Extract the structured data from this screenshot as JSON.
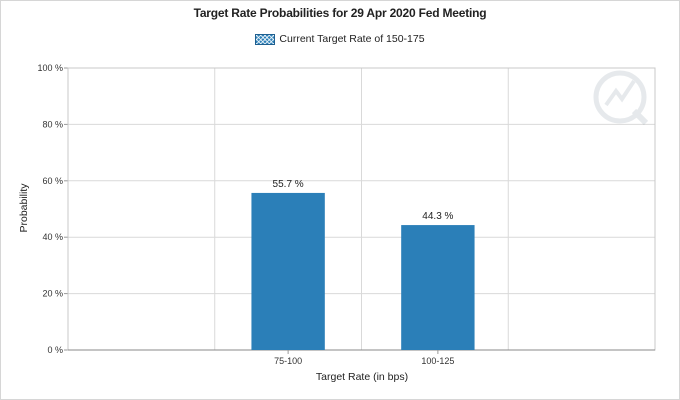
{
  "chart_data": {
    "type": "bar",
    "title": "Target Rate Probabilities for 29 Apr 2020 Fed Meeting",
    "legend": {
      "label": "Current Target Rate of 150-175",
      "placement": "top-center"
    },
    "categories": [
      "75-100",
      "100-125"
    ],
    "values": [
      55.7,
      44.3
    ],
    "data_labels": [
      "55.7 %",
      "44.3 %"
    ],
    "xlabel": "Target Rate (in bps)",
    "ylabel": "Probability",
    "ylim": [
      0,
      100
    ],
    "yticks": [
      "0 %",
      "20 %",
      "40 %",
      "60 %",
      "80 %",
      "100 %"
    ],
    "grid": true,
    "bar_color": "#2b7fb8"
  }
}
